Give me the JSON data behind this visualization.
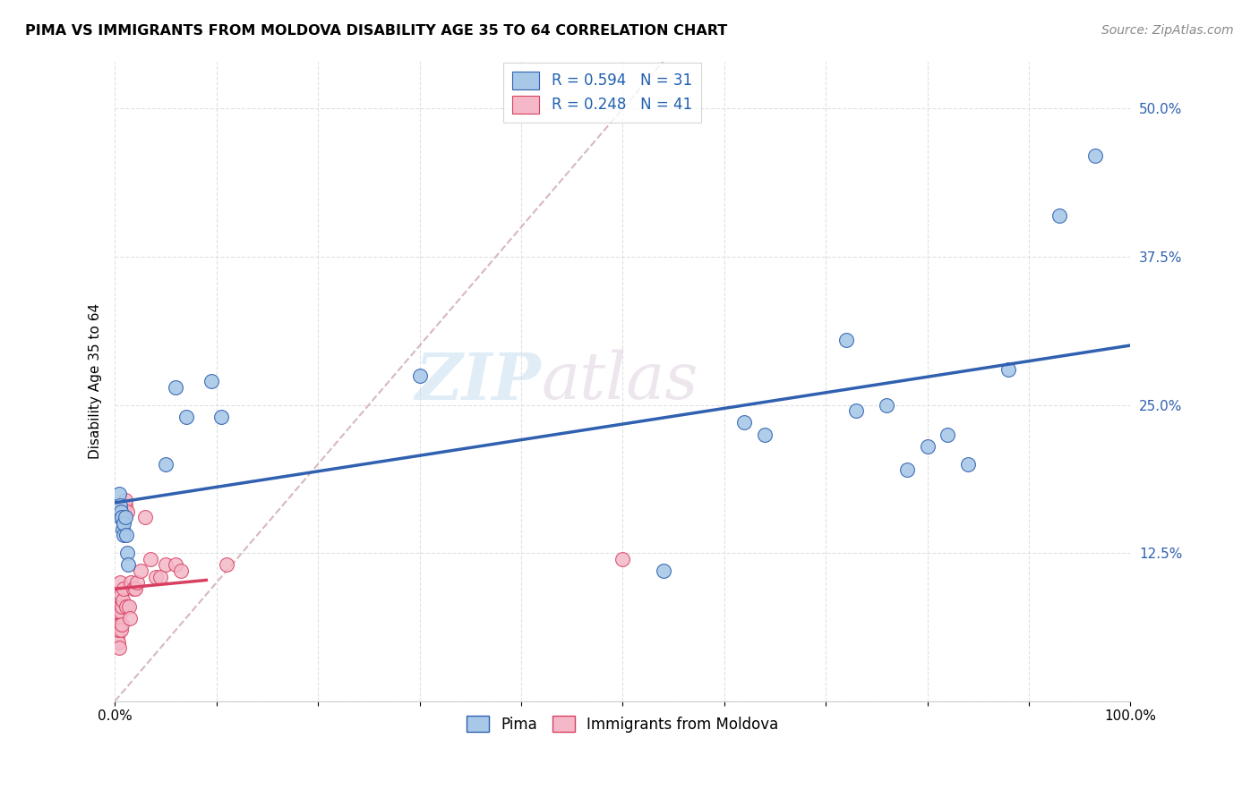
{
  "title": "PIMA VS IMMIGRANTS FROM MOLDOVA DISABILITY AGE 35 TO 64 CORRELATION CHART",
  "source": "Source: ZipAtlas.com",
  "ylabel": "Disability Age 35 to 64",
  "legend_label1": "Pima",
  "legend_label2": "Immigrants from Moldova",
  "r1": 0.594,
  "n1": 31,
  "r2": 0.248,
  "n2": 41,
  "xlim": [
    0.0,
    1.0
  ],
  "ylim": [
    0.0,
    0.54
  ],
  "color_blue": "#a8c8e8",
  "color_pink": "#f4b8c8",
  "color_blue_line": "#3060b0",
  "color_pink_line": "#d84060",
  "color_ref_line": "#d8b8c0",
  "watermark_zip": "ZIP",
  "watermark_atlas": "atlas",
  "blue_x": [
    0.004,
    0.005,
    0.005,
    0.006,
    0.007,
    0.008,
    0.009,
    0.009,
    0.01,
    0.011,
    0.012,
    0.013,
    0.05,
    0.06,
    0.07,
    0.095,
    0.105,
    0.3,
    0.54,
    0.62,
    0.64,
    0.72,
    0.73,
    0.76,
    0.78,
    0.8,
    0.82,
    0.84,
    0.88,
    0.93,
    0.965
  ],
  "blue_y": [
    0.175,
    0.165,
    0.155,
    0.16,
    0.155,
    0.145,
    0.14,
    0.15,
    0.155,
    0.14,
    0.125,
    0.115,
    0.2,
    0.265,
    0.24,
    0.27,
    0.24,
    0.275,
    0.11,
    0.235,
    0.225,
    0.305,
    0.245,
    0.25,
    0.195,
    0.215,
    0.225,
    0.2,
    0.28,
    0.41,
    0.46
  ],
  "pink_x": [
    0.001,
    0.002,
    0.002,
    0.003,
    0.003,
    0.003,
    0.004,
    0.004,
    0.004,
    0.005,
    0.005,
    0.005,
    0.006,
    0.006,
    0.006,
    0.007,
    0.007,
    0.008,
    0.008,
    0.009,
    0.009,
    0.01,
    0.01,
    0.011,
    0.012,
    0.014,
    0.015,
    0.016,
    0.018,
    0.02,
    0.022,
    0.025,
    0.03,
    0.035,
    0.04,
    0.045,
    0.05,
    0.06,
    0.065,
    0.11,
    0.5
  ],
  "pink_y": [
    0.09,
    0.055,
    0.07,
    0.05,
    0.06,
    0.075,
    0.045,
    0.065,
    0.08,
    0.065,
    0.08,
    0.1,
    0.06,
    0.075,
    0.09,
    0.065,
    0.08,
    0.085,
    0.155,
    0.095,
    0.16,
    0.165,
    0.17,
    0.08,
    0.16,
    0.08,
    0.07,
    0.1,
    0.095,
    0.095,
    0.1,
    0.11,
    0.155,
    0.12,
    0.105,
    0.105,
    0.115,
    0.115,
    0.11,
    0.115,
    0.12
  ]
}
